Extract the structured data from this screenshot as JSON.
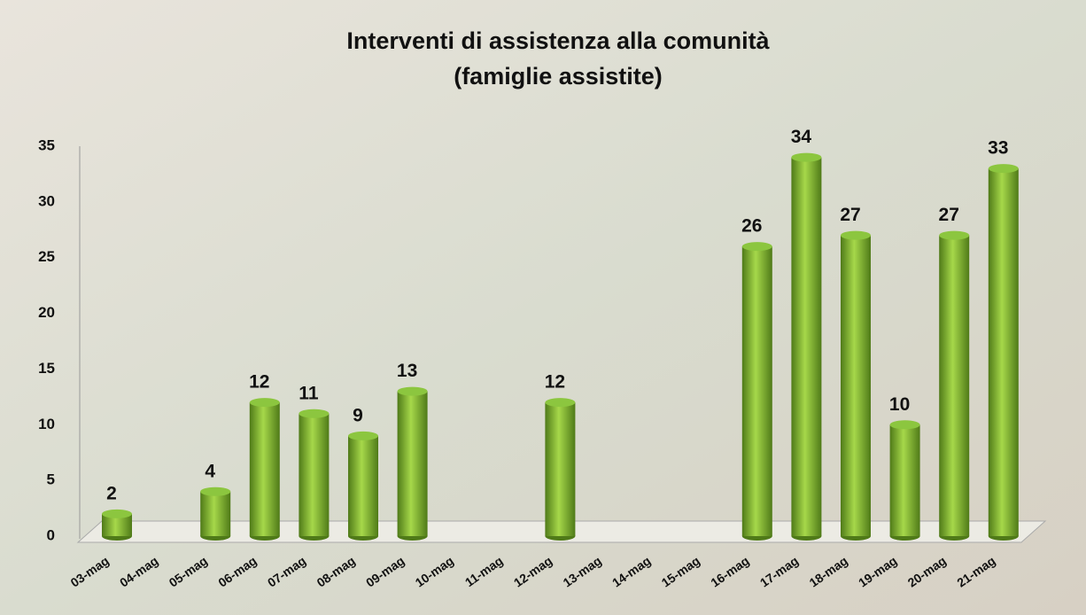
{
  "chart_data": {
    "type": "bar",
    "title": "Interventi di assistenza alla comunità",
    "subtitle": "(famiglie assistite)",
    "categories": [
      "03-mag",
      "04-mag",
      "05-mag",
      "06-mag",
      "07-mag",
      "08-mag",
      "09-mag",
      "10-mag",
      "11-mag",
      "12-mag",
      "13-mag",
      "14-mag",
      "15-mag",
      "16-mag",
      "17-mag",
      "18-mag",
      "19-mag",
      "20-mag",
      "21-mag"
    ],
    "values": [
      2,
      null,
      4,
      12,
      11,
      9,
      13,
      null,
      null,
      12,
      null,
      null,
      null,
      26,
      34,
      27,
      10,
      27,
      33
    ],
    "color": "#8cc63f",
    "ylim": [
      0,
      35
    ],
    "yticks": [
      0,
      5,
      10,
      15,
      20,
      25,
      30,
      35
    ],
    "grid": false
  }
}
